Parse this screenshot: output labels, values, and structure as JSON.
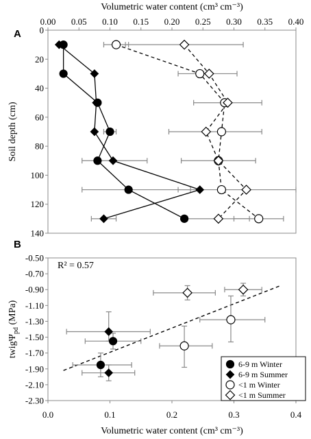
{
  "chart_data": [
    {
      "panel_label": "A",
      "type": "line",
      "xlabel": "Volumetric water content (cm³ cm⁻³)",
      "ylabel": "Soil depth (cm)",
      "xlim": [
        0.0,
        0.4
      ],
      "ylim": [
        0,
        140
      ],
      "y_inverted": true,
      "x_ticks": [
        "0.00",
        "0.05",
        "0.10",
        "0.15",
        "0.20",
        "0.25",
        "0.30",
        "0.35",
        "0.40"
      ],
      "y_ticks": [
        "0",
        "20",
        "40",
        "60",
        "80",
        "100",
        "120",
        "140"
      ],
      "grid": false,
      "series": [
        {
          "name": "6-9 m Winter",
          "marker": "filled-circle",
          "line": "solid",
          "color": "#000000",
          "points": [
            {
              "x": 0.025,
              "y": 10
            },
            {
              "x": 0.025,
              "y": 30
            },
            {
              "x": 0.08,
              "y": 50
            },
            {
              "x": 0.1,
              "y": 70
            },
            {
              "x": 0.08,
              "y": 90
            },
            {
              "x": 0.13,
              "y": 110
            },
            {
              "x": 0.22,
              "y": 130
            }
          ]
        },
        {
          "name": "6-9 m Summer",
          "marker": "filled-diamond",
          "line": "solid",
          "color": "#000000",
          "points": [
            {
              "x": 0.018,
              "y": 10
            },
            {
              "x": 0.075,
              "y": 30
            },
            {
              "x": 0.078,
              "y": 50
            },
            {
              "x": 0.075,
              "y": 70
            },
            {
              "x": 0.105,
              "y": 90
            },
            {
              "x": 0.245,
              "y": 110
            },
            {
              "x": 0.09,
              "y": 130,
              "xerr_low": 0.07,
              "xerr_high": 0.11
            }
          ]
        },
        {
          "name": "<1 m Winter",
          "marker": "open-circle",
          "line": "dashed",
          "color": "#000000",
          "points": [
            {
              "x": 0.11,
              "y": 10
            },
            {
              "x": 0.245,
              "y": 30
            },
            {
              "x": 0.285,
              "y": 50
            },
            {
              "x": 0.28,
              "y": 70
            },
            {
              "x": 0.275,
              "y": 90
            },
            {
              "x": 0.28,
              "y": 110
            },
            {
              "x": 0.34,
              "y": 130,
              "xerr_low": 0.3,
              "xerr_high": 0.38
            }
          ]
        },
        {
          "name": "<1 m Summer",
          "marker": "open-diamond",
          "line": "dashed",
          "color": "#000000",
          "points": [
            {
              "x": 0.22,
              "y": 10,
              "xerr_low": 0.125,
              "xerr_high": 0.315
            },
            {
              "x": 0.26,
              "y": 30,
              "xerr_low": 0.21,
              "xerr_high": 0.305
            },
            {
              "x": 0.29,
              "y": 50,
              "xerr_low": 0.235,
              "xerr_high": 0.345
            },
            {
              "x": 0.255,
              "y": 70,
              "xerr_low": 0.195,
              "xerr_high": 0.345
            },
            {
              "x": 0.275,
              "y": 90,
              "xerr_low": 0.215,
              "xerr_high": 0.335
            },
            {
              "x": 0.32,
              "y": 110,
              "xerr_low": 0.21,
              "xerr_high": 0.4
            },
            {
              "x": 0.275,
              "y": 130,
              "xerr_low": 0.225,
              "xerr_high": 0.325
            }
          ]
        }
      ],
      "extra_errorbars": [
        {
          "y": 10,
          "x_low": 0.09,
          "x_high": 0.13
        },
        {
          "y": 70,
          "x_low": 0.09,
          "x_high": 0.11
        },
        {
          "y": 90,
          "x_low": 0.055,
          "x_high": 0.16
        },
        {
          "y": 110,
          "x_low": 0.055,
          "x_high": 0.23
        }
      ]
    },
    {
      "panel_label": "B",
      "type": "scatter",
      "xlabel": "Volumetric water content (cm³ cm⁻³)",
      "ylabel_main": "twigΨ",
      "ylabel_sub": "pd",
      "ylabel_unit": " (MPa)",
      "xlim": [
        0.0,
        0.4
      ],
      "ylim": [
        -2.3,
        -0.5
      ],
      "x_ticks": [
        "0.0",
        "0.1",
        "0.2",
        "0.3",
        "0.4"
      ],
      "y_ticks": [
        "-0.50",
        "-0.70",
        "-0.90",
        "-1.10",
        "-1.30",
        "-1.50",
        "-1.70",
        "-1.90",
        "-2.10",
        "-2.30"
      ],
      "grid": false,
      "annotation_r2": "R² = 0.57",
      "trendline": {
        "x0": 0.025,
        "y0": -1.92,
        "x1": 0.375,
        "y1": -0.85,
        "style": "dashed"
      },
      "legend_position": "bottom-right",
      "legend": [
        {
          "label": "6-9 m Winter",
          "marker": "filled-circle"
        },
        {
          "label": "6-9 m Summer",
          "marker": "filled-diamond"
        },
        {
          "label": "<1 m Winter",
          "marker": "open-circle"
        },
        {
          "label": "<1 m Summer",
          "marker": "open-diamond"
        }
      ],
      "series": [
        {
          "name": "6-9 m Winter",
          "marker": "filled-circle",
          "points": [
            {
              "x": 0.105,
              "y": -1.55,
              "xerr_low": 0.06,
              "xerr_high": 0.15,
              "yerr_low": -1.65,
              "yerr_high": -1.45
            },
            {
              "x": 0.085,
              "y": -1.85,
              "xerr_low": 0.04,
              "xerr_high": 0.135,
              "yerr_low": -2.0,
              "yerr_high": -1.7
            }
          ]
        },
        {
          "name": "6-9 m Summer",
          "marker": "filled-diamond",
          "points": [
            {
              "x": 0.098,
              "y": -1.43,
              "xerr_low": 0.03,
              "xerr_high": 0.165,
              "yerr_low": -1.55,
              "yerr_high": -1.18
            },
            {
              "x": 0.098,
              "y": -1.95,
              "xerr_low": 0.055,
              "xerr_high": 0.14,
              "yerr_low": -2.05,
              "yerr_high": -1.85
            }
          ]
        },
        {
          "name": "<1 m Winter",
          "marker": "open-circle",
          "points": [
            {
              "x": 0.295,
              "y": -1.28,
              "xerr_low": 0.245,
              "xerr_high": 0.35,
              "yerr_low": -1.56,
              "yerr_high": -0.98
            },
            {
              "x": 0.22,
              "y": -1.61,
              "xerr_low": 0.18,
              "xerr_high": 0.265,
              "yerr_low": -1.88,
              "yerr_high": -1.36
            }
          ]
        },
        {
          "name": "<1 m Summer",
          "marker": "open-diamond",
          "points": [
            {
              "x": 0.225,
              "y": -0.94,
              "xerr_low": 0.17,
              "xerr_high": 0.27,
              "yerr_low": -1.03,
              "yerr_high": -0.85
            },
            {
              "x": 0.315,
              "y": -0.9,
              "xerr_low": 0.285,
              "xerr_high": 0.345,
              "yerr_low": -0.98,
              "yerr_high": -0.82
            }
          ]
        }
      ]
    }
  ]
}
